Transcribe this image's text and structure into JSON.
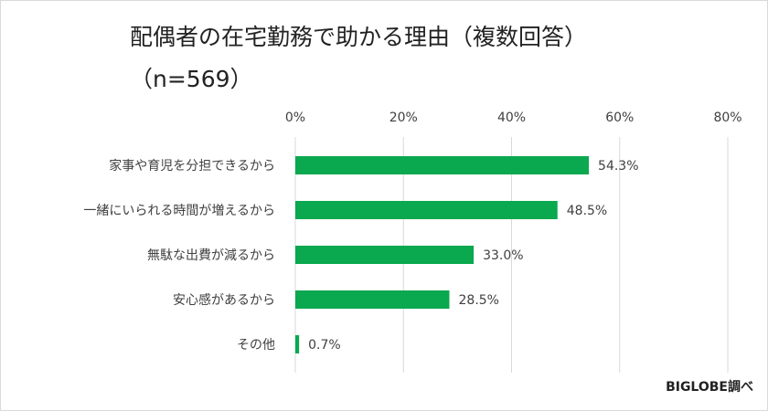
{
  "title_line1": "配偶者の在宅勤務で助かる理由（複数回答）",
  "title_line2": "（n=569）",
  "source": "BIGLOBE調べ",
  "colors": {
    "bar": "#0aa84f",
    "grid": "#d9d9d9",
    "text": "#404040"
  },
  "chart_data": {
    "type": "bar",
    "orientation": "horizontal",
    "title": "配偶者の在宅勤務で助かる理由（複数回答）",
    "subtitle": "（n=569）",
    "xlim": [
      0,
      80
    ],
    "xticks": [
      0,
      20,
      40,
      60,
      80
    ],
    "xtick_labels": [
      "0%",
      "20%",
      "40%",
      "60%",
      "80%"
    ],
    "grid": true,
    "categories": [
      "家事や育児を分担できるから",
      "一緒にいられる時間が増えるから",
      "無駄な出費が減るから",
      "安心感があるから",
      "その他"
    ],
    "values": [
      54.3,
      48.5,
      33.0,
      28.5,
      0.7
    ],
    "value_labels": [
      "54.3%",
      "48.5%",
      "33.0%",
      "28.5%",
      "0.7%"
    ]
  }
}
